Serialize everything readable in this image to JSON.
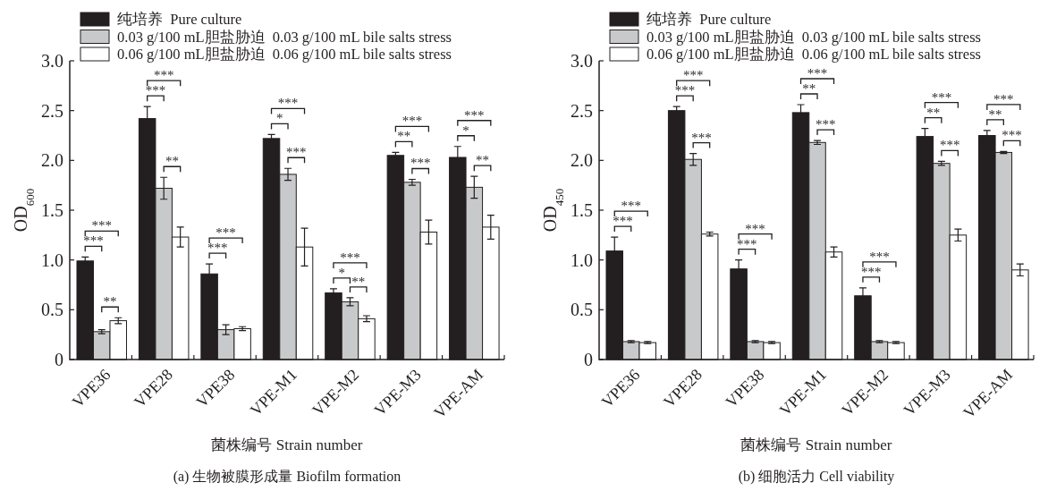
{
  "chart_data": [
    {
      "type": "bar",
      "title": "(a) 生物被膜形成量 Biofilm formation",
      "xlabel": "菌株编号 Strain number",
      "ylabel": "OD$_{600}$",
      "categories": [
        "VPE36",
        "VPE28",
        "VPE38",
        "VPE-M1",
        "VPE-M2",
        "VPE-M3",
        "VPE-AM"
      ],
      "series": [
        {
          "name": "纯培养  Pure culture",
          "color": "#231f20",
          "values": [
            0.99,
            2.42,
            0.86,
            2.22,
            0.67,
            2.05,
            2.03
          ],
          "errors": [
            0.04,
            0.12,
            0.1,
            0.04,
            0.04,
            0.03,
            0.11
          ]
        },
        {
          "name": "0.03 g/100 mL胆盐胁迫  0.03 g/100 mL bile salts stress",
          "color": "#c8c9ca",
          "values": [
            0.28,
            1.72,
            0.3,
            1.86,
            0.58,
            1.78,
            1.73
          ],
          "errors": [
            0.02,
            0.11,
            0.05,
            0.06,
            0.04,
            0.03,
            0.11
          ]
        },
        {
          "name": "0.06 g/100 mL胆盐胁迫  0.06 g/100 mL bile salts stress",
          "color": "#ffffff",
          "values": [
            0.39,
            1.23,
            0.31,
            1.13,
            0.41,
            1.28,
            1.33
          ],
          "errors": [
            0.03,
            0.1,
            0.02,
            0.19,
            0.03,
            0.12,
            0.12
          ]
        }
      ],
      "ylim": [
        0,
        3
      ],
      "yticks": [
        0,
        0.5,
        {
          "value": 1,
          "label": "1.0"
        },
        1.5,
        {
          "value": 2,
          "label": "2.0"
        },
        2.5,
        {
          "value": 3,
          "label": "3.0"
        }
      ],
      "grid": false,
      "legend": "top",
      "annotations": [
        "***",
        "***",
        "**",
        "***",
        "***",
        "**",
        "***",
        "***",
        "*",
        "***",
        "***",
        "*",
        "***",
        "**",
        "**",
        "***",
        "***",
        "*",
        "***",
        "**"
      ]
    },
    {
      "type": "bar",
      "title": "(b) 细胞活力 Cell viability",
      "xlabel": "菌株编号 Strain number",
      "ylabel": "OD$_{450}$",
      "categories": [
        "VPE36",
        "VPE28",
        "VPE38",
        "VPE-M1",
        "VPE-M2",
        "VPE-M3",
        "VPE-AM"
      ],
      "series": [
        {
          "name": "纯培养  Pure culture",
          "color": "#231f20",
          "values": [
            1.09,
            2.5,
            0.91,
            2.48,
            0.64,
            2.24,
            2.25
          ],
          "errors": [
            0.14,
            0.04,
            0.09,
            0.08,
            0.08,
            0.08,
            0.05
          ]
        },
        {
          "name": "0.03 g/100 mL胆盐胁迫  0.03 g/100 mL bile salts stress",
          "color": "#c8c9ca",
          "values": [
            0.18,
            2.01,
            0.18,
            2.18,
            0.18,
            1.97,
            2.08
          ],
          "errors": [
            0.01,
            0.06,
            0.01,
            0.02,
            0.01,
            0.02,
            0.01
          ]
        },
        {
          "name": "0.06 g/100 mL胆盐胁迫  0.06 g/100 mL bile salts stress",
          "color": "#ffffff",
          "values": [
            0.17,
            1.26,
            0.17,
            1.08,
            0.17,
            1.25,
            0.9
          ],
          "errors": [
            0.01,
            0.02,
            0.01,
            0.05,
            0.01,
            0.06,
            0.06
          ]
        }
      ],
      "ylim": [
        0,
        3
      ],
      "yticks": [
        0,
        0.5,
        {
          "value": 1,
          "label": "1.0"
        },
        1.5,
        {
          "value": 2,
          "label": "2.0"
        },
        2.5,
        {
          "value": 3,
          "label": "3.0"
        }
      ],
      "grid": false,
      "legend": "top",
      "annotations": [
        "***",
        "***",
        "***",
        "***",
        "***",
        "***",
        "***",
        "**",
        "***",
        "***",
        "***",
        "***",
        "**",
        "***",
        "***",
        "**",
        "***",
        "***"
      ]
    }
  ]
}
